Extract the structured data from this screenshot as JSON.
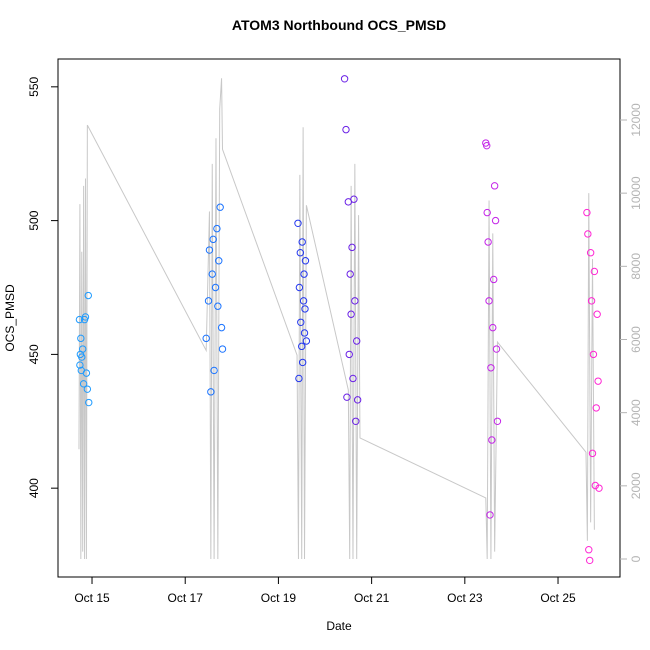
{
  "chart_data": {
    "type": "scatter",
    "title": "ATOM3 Northbound OCS_PMSD",
    "x_label": "Date",
    "y_label": "OCS_PMSD",
    "xlim": [
      14.27,
      26.33
    ],
    "xticks": [
      {
        "value": 15,
        "label": "Oct 15"
      },
      {
        "value": 17,
        "label": "Oct 17"
      },
      {
        "value": 19,
        "label": "Oct 19"
      },
      {
        "value": 21,
        "label": "Oct 21"
      },
      {
        "value": 23,
        "label": "Oct 23"
      },
      {
        "value": 25,
        "label": "Oct 25"
      }
    ],
    "ylim": [
      366.8,
      560.4
    ],
    "yticks": [
      400,
      450,
      500,
      550
    ],
    "y2lim": [
      -492,
      13667
    ],
    "y2ticks": [
      0,
      2000,
      4000,
      6000,
      8000,
      10000,
      12000
    ],
    "series": [
      {
        "color": "#c8c8c8",
        "type": "line",
        "axis": "y2",
        "x": [
          14.72,
          14.74,
          14.76,
          14.78,
          14.8,
          14.82,
          14.84,
          14.86,
          14.88,
          14.9,
          17.45,
          17.52,
          17.55,
          17.58,
          17.62,
          17.66,
          17.7,
          17.74,
          17.78,
          17.8,
          19.4,
          19.43,
          19.46,
          19.5,
          19.53,
          19.56,
          19.6,
          20.5,
          20.53,
          20.56,
          20.6,
          20.64,
          20.68,
          20.72,
          20.75,
          23.45,
          23.48,
          23.52,
          23.56,
          23.6,
          23.64,
          23.7,
          25.6,
          25.63,
          25.66,
          25.7,
          25.74,
          25.78
        ],
        "values": [
          3000,
          9700,
          0,
          8400,
          200,
          10200,
          0,
          10400,
          0,
          11860,
          5700,
          9500,
          0,
          10800,
          0,
          11500,
          0,
          12300,
          13140,
          11200,
          5570,
          0,
          10500,
          0,
          11800,
          0,
          9670,
          4620,
          0,
          10200,
          0,
          10800,
          0,
          9400,
          3310,
          1670,
          0,
          9800,
          0,
          8900,
          200,
          5930,
          2920,
          500,
          10000,
          1000,
          8200,
          800
        ]
      },
      {
        "color": "#1e9bff",
        "x": [
          14.73,
          14.74,
          14.75,
          14.76,
          14.77,
          14.78,
          14.8,
          14.82,
          14.84,
          14.86,
          14.88,
          14.9,
          14.92,
          14.93
        ],
        "values": [
          463,
          446,
          450,
          456,
          444,
          449,
          452,
          439,
          463,
          464,
          443,
          437,
          472,
          432
        ]
      },
      {
        "color": "#1a73ff",
        "x": [
          17.45,
          17.5,
          17.52,
          17.55,
          17.58,
          17.6,
          17.62,
          17.65,
          17.68,
          17.7,
          17.72,
          17.75,
          17.78,
          17.8
        ],
        "values": [
          456,
          470,
          489,
          436,
          480,
          493,
          444,
          475,
          497,
          468,
          485,
          505,
          460,
          452
        ]
      },
      {
        "color": "#2438f0",
        "x": [
          19.42,
          19.44,
          19.45,
          19.47,
          19.48,
          19.5,
          19.51,
          19.52,
          19.54,
          19.55,
          19.56,
          19.57,
          19.58,
          19.6
        ],
        "values": [
          499,
          441,
          475,
          488,
          462,
          453,
          492,
          447,
          470,
          480,
          458,
          467,
          485,
          455
        ]
      },
      {
        "color": "#6a20e6",
        "x": [
          20.42,
          20.45,
          20.47,
          20.5,
          20.52,
          20.54,
          20.56,
          20.58,
          20.6,
          20.62,
          20.64,
          20.66,
          20.68,
          20.7
        ],
        "values": [
          553,
          534,
          434,
          507,
          450,
          480,
          465,
          490,
          441,
          508,
          470,
          425,
          455,
          433
        ]
      },
      {
        "color": "#c424e8",
        "x": [
          23.45,
          23.47,
          23.48,
          23.5,
          23.52,
          23.54,
          23.56,
          23.58,
          23.6,
          23.62,
          23.64,
          23.66,
          23.68,
          23.7
        ],
        "values": [
          529,
          528,
          503,
          492,
          470,
          390,
          445,
          418,
          460,
          478,
          513,
          500,
          452,
          425
        ]
      },
      {
        "color": "#ff27d4",
        "x": [
          25.62,
          25.64,
          25.66,
          25.68,
          25.7,
          25.72,
          25.74,
          25.76,
          25.78,
          25.8,
          25.82,
          25.84,
          25.86,
          25.88
        ],
        "values": [
          503,
          495,
          377,
          373,
          488,
          470,
          413,
          450,
          481,
          401,
          430,
          465,
          440,
          400
        ]
      }
    ]
  }
}
